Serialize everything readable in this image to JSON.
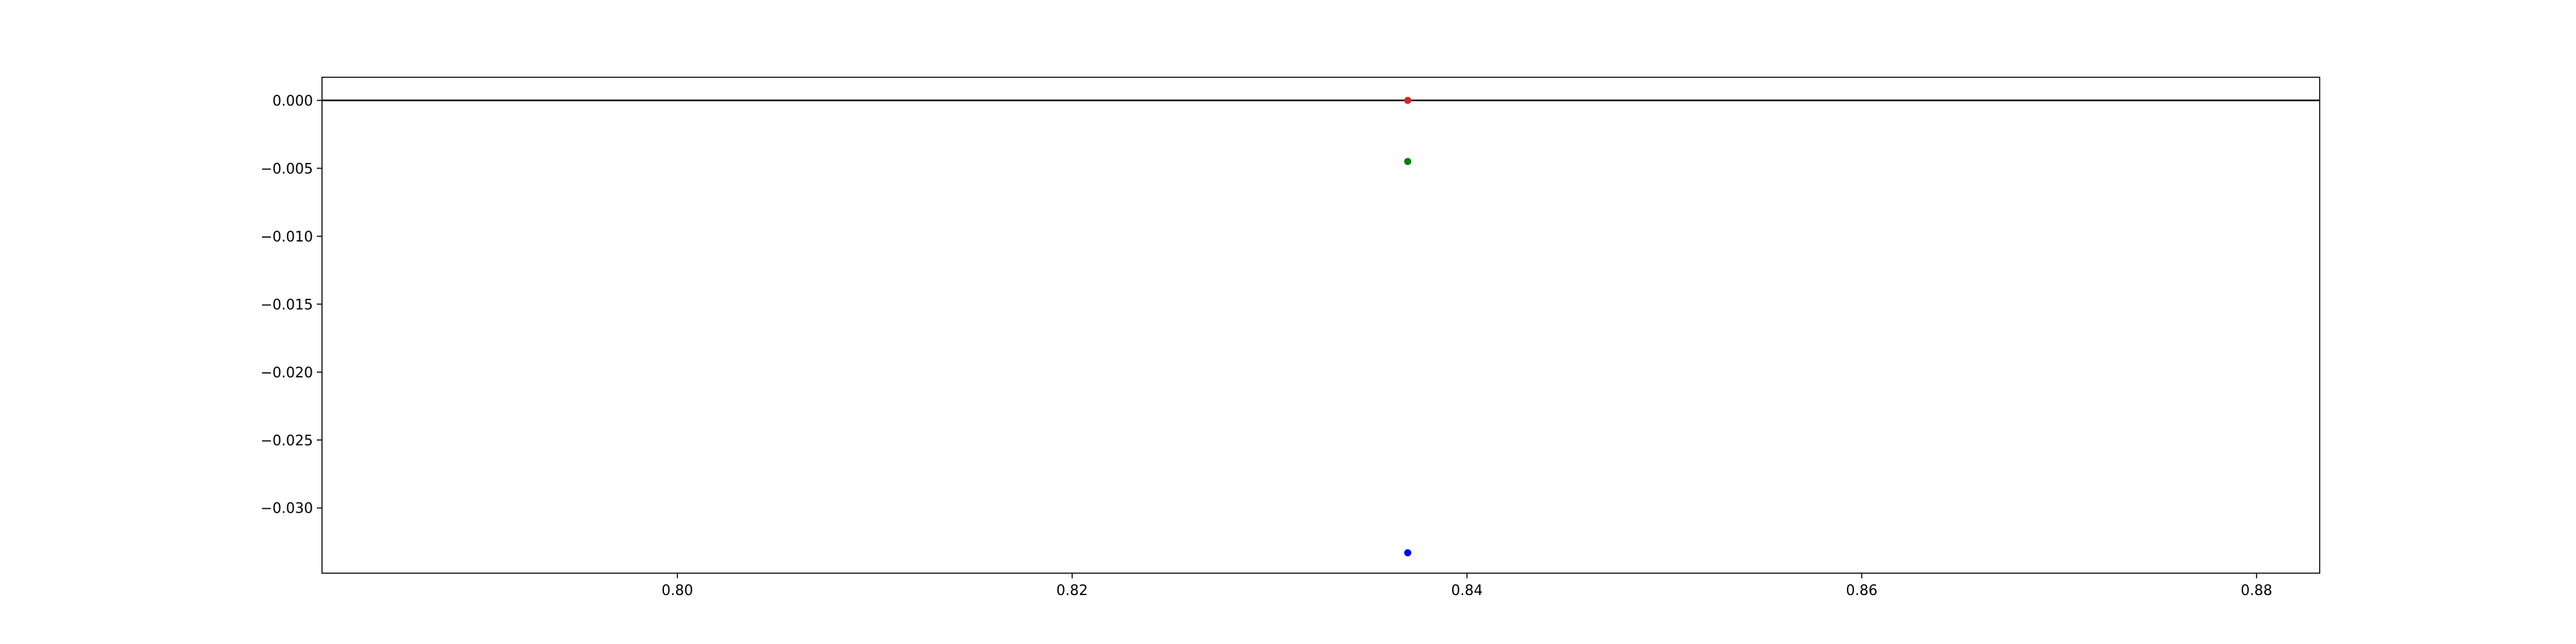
{
  "chart_data": {
    "type": "scatter",
    "title": "",
    "xlabel": "",
    "ylabel": "",
    "xlim": [
      0.782,
      0.8832
    ],
    "ylim": [
      -0.0348,
      0.0017
    ],
    "grid": false,
    "x_ticks": [
      0.8,
      0.82,
      0.84,
      0.86,
      0.88
    ],
    "x_tick_labels": [
      "0.80",
      "0.82",
      "0.84",
      "0.86",
      "0.88"
    ],
    "y_ticks": [
      0.0,
      -0.005,
      -0.01,
      -0.015,
      -0.02,
      -0.025,
      -0.03
    ],
    "y_tick_labels": [
      "0.000",
      "−0.005",
      "−0.010",
      "−0.015",
      "−0.020",
      "−0.025",
      "−0.030"
    ],
    "hlines": [
      {
        "y": 0.0,
        "color": "#000000"
      }
    ],
    "points": [
      {
        "x": 0.837,
        "y": 0.0,
        "color": "#d62728"
      },
      {
        "x": 0.837,
        "y": -0.0045,
        "color": "#008000"
      },
      {
        "x": 0.837,
        "y": -0.0333,
        "color": "#0000ff"
      }
    ]
  }
}
